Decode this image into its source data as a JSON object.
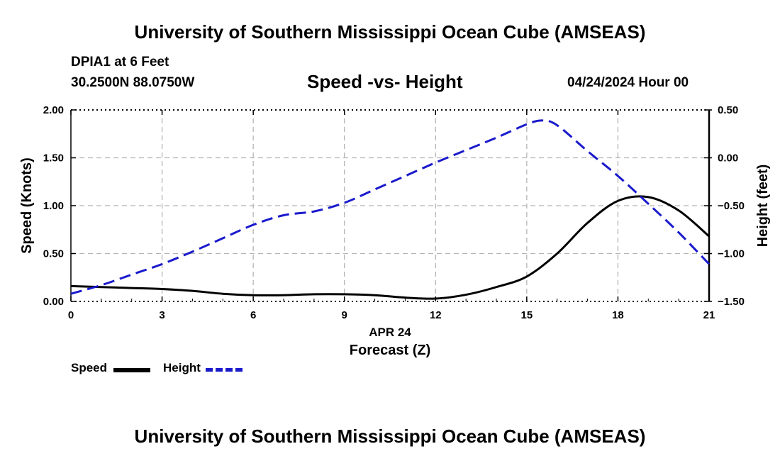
{
  "header": {
    "title": "University of Southern Mississippi Ocean Cube (AMSEAS)",
    "station": "DPIA1 at 6 Feet",
    "coordinates": "30.2500N  88.0750W",
    "chart_title": "Speed -vs- Height",
    "datetime": "04/24/2024 Hour 00"
  },
  "footer": {
    "title": "University of Southern Mississippi Ocean Cube (AMSEAS)"
  },
  "legend": {
    "speed_label": "Speed",
    "height_label": "Height"
  },
  "colors": {
    "speed": "#000000",
    "height": "#1a1acc",
    "grid": "#b4b4b4"
  },
  "chart_data": {
    "type": "line",
    "title": "Speed -vs- Height",
    "xlabel": "Forecast (Z)",
    "xlabel_date": "APR 24",
    "ylabel": "Speed (Knots)",
    "y2label": "Height (feet)",
    "xlim": [
      0,
      21
    ],
    "ylim": [
      0,
      2
    ],
    "y2lim": [
      -1.5,
      0.5
    ],
    "xticks": [
      0,
      3,
      6,
      9,
      12,
      15,
      18,
      21
    ],
    "xtick_labels": [
      "0",
      "3",
      "6",
      "9",
      "12",
      "15",
      "18",
      "21"
    ],
    "yticks": [
      0,
      0.5,
      1,
      1.5,
      2
    ],
    "ytick_labels": [
      "0.00",
      "0.50",
      "1.00",
      "1.50",
      "2.00"
    ],
    "y2ticks": [
      -1.5,
      -1,
      -0.5,
      0,
      0.5
    ],
    "y2tick_labels": [
      "−1.50",
      "−1.00",
      "−0.50",
      "0.00",
      "0.50"
    ],
    "grid": true,
    "legend_position": "bottom-left",
    "series": [
      {
        "name": "Speed",
        "axis": "left",
        "style": "solid",
        "x": [
          0,
          1,
          2,
          3,
          4,
          5,
          6,
          7,
          8,
          9,
          10,
          11,
          12,
          13,
          14,
          15,
          16,
          17,
          18,
          19,
          20,
          21
        ],
        "values": [
          0.16,
          0.15,
          0.14,
          0.13,
          0.11,
          0.08,
          0.065,
          0.065,
          0.075,
          0.075,
          0.065,
          0.04,
          0.03,
          0.07,
          0.15,
          0.26,
          0.5,
          0.82,
          1.05,
          1.09,
          0.95,
          0.68
        ]
      },
      {
        "name": "Height",
        "axis": "right",
        "style": "dashed",
        "x": [
          0,
          1,
          2,
          3,
          4,
          5,
          6,
          7,
          8,
          9,
          10,
          11,
          12,
          13,
          14,
          15,
          15.5,
          16,
          17,
          18,
          19,
          20,
          21
        ],
        "values": [
          -1.42,
          -1.33,
          -1.22,
          -1.11,
          -0.98,
          -0.84,
          -0.7,
          -0.6,
          -0.56,
          -0.47,
          -0.33,
          -0.19,
          -0.05,
          0.08,
          0.21,
          0.35,
          0.39,
          0.34,
          0.07,
          -0.19,
          -0.48,
          -0.78,
          -1.11
        ]
      }
    ]
  }
}
